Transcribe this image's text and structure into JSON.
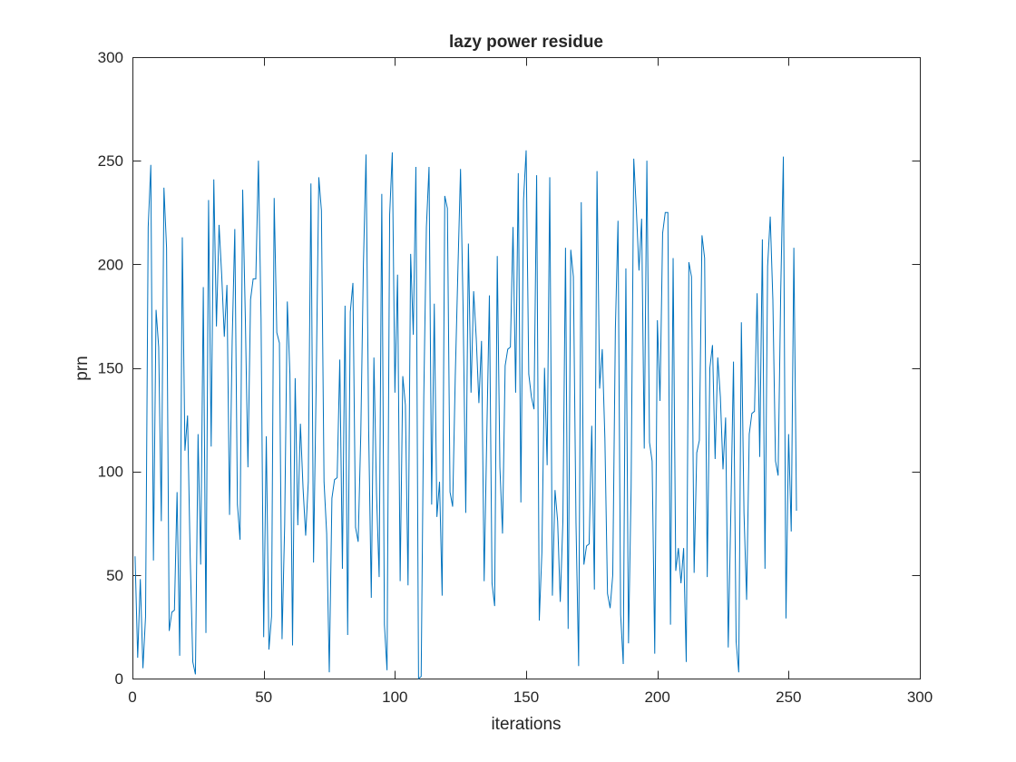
{
  "chart_data": {
    "type": "line",
    "title": "lazy power residue",
    "xlabel": "iterations",
    "ylabel": "prn",
    "xlim": [
      0,
      300
    ],
    "ylim": [
      0,
      300
    ],
    "xticks": [
      0,
      50,
      100,
      150,
      200,
      250,
      300
    ],
    "yticks": [
      0,
      50,
      100,
      150,
      200,
      250,
      300
    ],
    "grid": false,
    "legend": "none",
    "series": [
      {
        "color": "#0072BD",
        "x_start": 1,
        "values": [
          59,
          10,
          48,
          5,
          30,
          218,
          248,
          57,
          178,
          160,
          76,
          237,
          208,
          23,
          32,
          33,
          90,
          11,
          213,
          110,
          127,
          59,
          8,
          2,
          118,
          55,
          189,
          22,
          231,
          112,
          241,
          170,
          219,
          195,
          165,
          190,
          79,
          163,
          217,
          84,
          67,
          236,
          175,
          102,
          183,
          193,
          193,
          250,
          174,
          20,
          117,
          14,
          30,
          232,
          167,
          162,
          19,
          74,
          182,
          147,
          16,
          145,
          74,
          123,
          92,
          69,
          95,
          239,
          56,
          142,
          242,
          226,
          95,
          70,
          3,
          87,
          96,
          97,
          154,
          53,
          180,
          21,
          177,
          191,
          73,
          66,
          118,
          200,
          253,
          120,
          39,
          155,
          89,
          49,
          234,
          26,
          4,
          224,
          254,
          138,
          195,
          47,
          146,
          132,
          45,
          205,
          166,
          247,
          0,
          1,
          136,
          218,
          247,
          84,
          181,
          78,
          95,
          40,
          233,
          227,
          90,
          83,
          146,
          197,
          246,
          177,
          80,
          210,
          138,
          187,
          164,
          133,
          163,
          47,
          117,
          185,
          46,
          35,
          204,
          102,
          70,
          151,
          159,
          160,
          218,
          138,
          244,
          85,
          231,
          255,
          147,
          136,
          130,
          243,
          28,
          61,
          150,
          103,
          242,
          40,
          91,
          76,
          37,
          76,
          208,
          24,
          207,
          194,
          75,
          6,
          230,
          55,
          64,
          65,
          122,
          43,
          245,
          140,
          159,
          116,
          41,
          34,
          50,
          169,
          221,
          31,
          7,
          198,
          17,
          92,
          251,
          226,
          197,
          222,
          111,
          250,
          114,
          105,
          12,
          173,
          134,
          215,
          225,
          225,
          26,
          203,
          52,
          63,
          46,
          63,
          8,
          201,
          194,
          51,
          109,
          115,
          214,
          203,
          49,
          150,
          161,
          106,
          155,
          136,
          101,
          126,
          15,
          81,
          153,
          18,
          3,
          172,
          80,
          38,
          118,
          128,
          129,
          186,
          107,
          212,
          53,
          199,
          223,
          183,
          105,
          98,
          187,
          252,
          29,
          118,
          71,
          208,
          81
        ]
      }
    ]
  }
}
